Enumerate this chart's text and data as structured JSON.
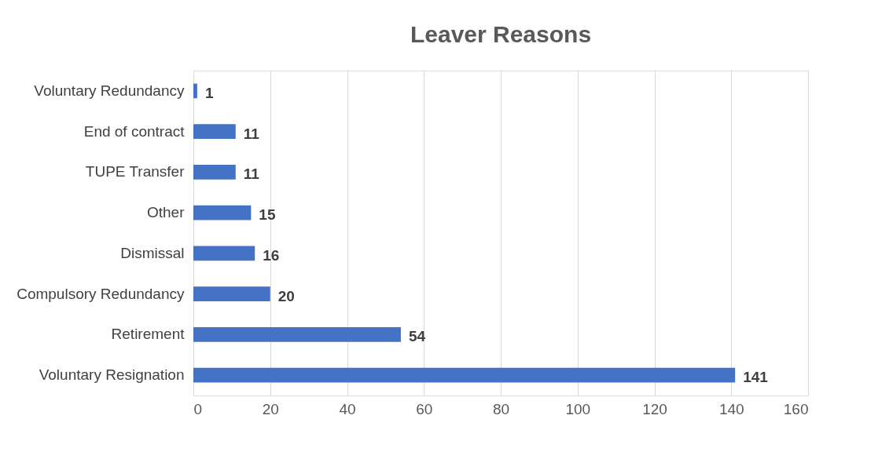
{
  "chart_data": {
    "type": "bar",
    "orientation": "horizontal",
    "title": "Leaver Reasons",
    "categories": [
      "Voluntary Redundancy",
      "End of contract",
      "TUPE Transfer",
      "Other",
      "Dismissal",
      "Compulsory Redundancy",
      "Retirement",
      "Voluntary Resignation"
    ],
    "values": [
      1,
      11,
      11,
      15,
      16,
      20,
      54,
      141
    ],
    "color": "#4472c4",
    "xlim": [
      0,
      160
    ],
    "xticks": [
      0,
      20,
      40,
      60,
      80,
      100,
      120,
      140,
      160
    ],
    "grid": "x",
    "data_labels": true
  }
}
